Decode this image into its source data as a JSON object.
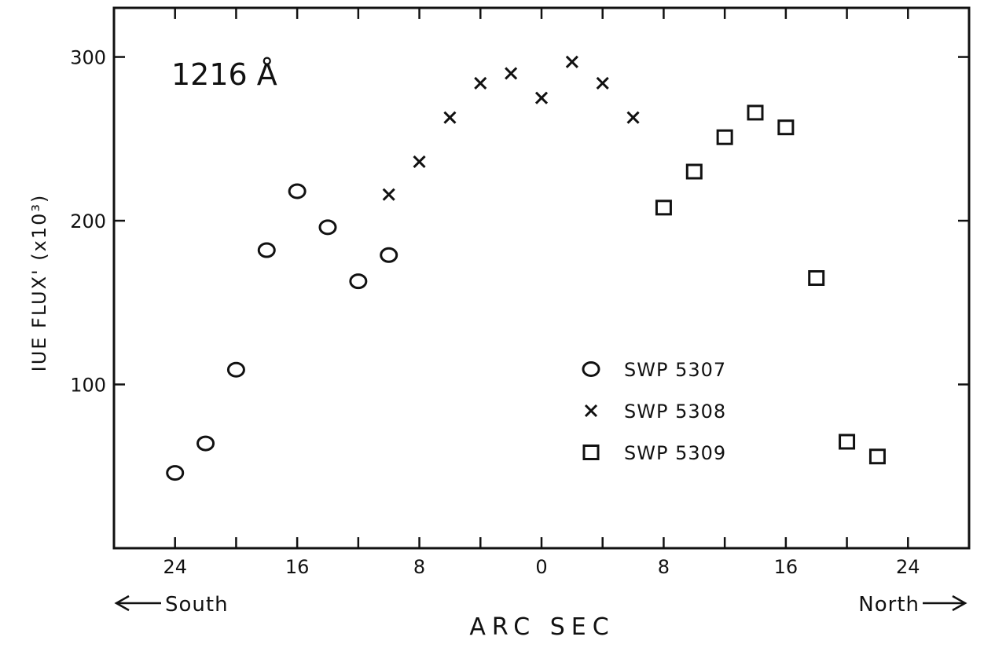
{
  "chart_data": {
    "type": "scatter",
    "title": "",
    "annotation": "1216 Å",
    "xlabel": "ARC SEC",
    "ylabel": "IUE FLUX' (x10³)",
    "direction_left": "South",
    "direction_right": "North",
    "xlim": [
      -28,
      28
    ],
    "ylim": [
      0,
      330
    ],
    "x_ticks": [
      -24,
      -20,
      -16,
      -12,
      -8,
      -4,
      0,
      4,
      8,
      12,
      16,
      20,
      24
    ],
    "x_tick_labels": [
      {
        "x": -24,
        "label": "24"
      },
      {
        "x": -16,
        "label": "16"
      },
      {
        "x": -8,
        "label": "8"
      },
      {
        "x": 0,
        "label": "0"
      },
      {
        "x": 8,
        "label": "8"
      },
      {
        "x": 16,
        "label": "16"
      },
      {
        "x": 24,
        "label": "24"
      }
    ],
    "y_ticks": [
      100,
      200,
      300
    ],
    "y_tick_labels": [
      "100",
      "200",
      "300"
    ],
    "grid": false,
    "legend_position": "center-right",
    "series": [
      {
        "name": "SWP 5307",
        "marker": "circle",
        "x": [
          -24,
          -22,
          -20,
          -18,
          -16,
          -14,
          -12,
          -10
        ],
        "y": [
          46,
          64,
          109,
          182,
          218,
          196,
          163,
          179
        ]
      },
      {
        "name": "SWP 5308",
        "marker": "cross",
        "x": [
          -10,
          -8,
          -6,
          -4,
          -2,
          0,
          2,
          4,
          6
        ],
        "y": [
          216,
          236,
          263,
          284,
          290,
          275,
          297,
          284,
          263
        ]
      },
      {
        "name": "SWP 5309",
        "marker": "square",
        "x": [
          8,
          10,
          12,
          14,
          16,
          18,
          20,
          22
        ],
        "y": [
          208,
          230,
          251,
          266,
          257,
          165,
          65,
          56
        ]
      }
    ]
  }
}
